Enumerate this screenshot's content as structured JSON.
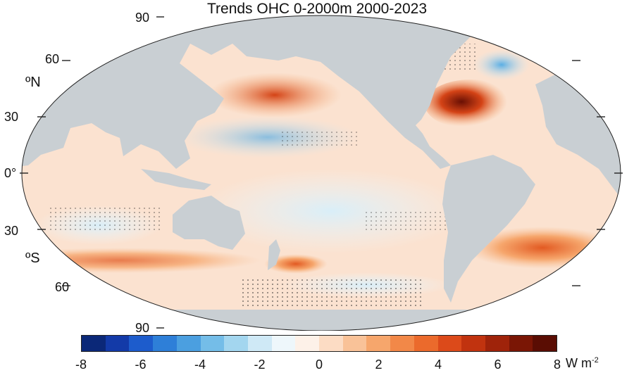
{
  "title": "Trends OHC 0-2000m 2000-2023",
  "lat_labels": {
    "n90": "90",
    "n60": "60",
    "n30": "30",
    "eq": "0°",
    "s30": "30",
    "s60": "60",
    "s90": "90"
  },
  "hemispheres": {
    "north": "ºN",
    "south": "ºS"
  },
  "colorbar": {
    "ticks": [
      "-8",
      "-6",
      "-4",
      "-2",
      "0",
      "2",
      "4",
      "6",
      "8"
    ],
    "unit": "W m",
    "unit_exp": "-2",
    "colors": [
      "#0b2878",
      "#133aa8",
      "#1d5ccc",
      "#2e7fd8",
      "#4b9fe0",
      "#74bde8",
      "#a3d6ef",
      "#cfe9f6",
      "#eef7fb",
      "#fdf1e8",
      "#fcdcc4",
      "#f9c298",
      "#f6a66c",
      "#f28848",
      "#eb6a2c",
      "#dc4a1a",
      "#c1330f",
      "#9f230a",
      "#7a1605",
      "#5a0d03"
    ]
  },
  "colors": {
    "land": "#c9cfd3",
    "ocean_base": "#fbe2d0"
  }
}
